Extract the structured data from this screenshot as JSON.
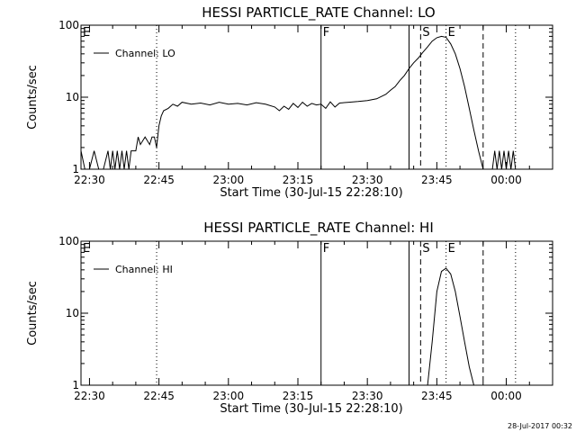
{
  "footer": {
    "timestamp": "28-Jul-2017 00:32"
  },
  "chart_data": [
    {
      "type": "line",
      "title": "HESSI PARTICLE_RATE Channel: LO",
      "xlabel": "Start Time (30-Jul-15 22:28:10)",
      "ylabel": "Counts/sec",
      "yscale": "log",
      "xlim": [
        "22:28:10",
        "00:10:00"
      ],
      "ylim": [
        1,
        100
      ],
      "xticks": [
        "22:30",
        "22:45",
        "23:00",
        "23:15",
        "23:30",
        "23:45",
        "00:00"
      ],
      "yticks": [
        "1",
        "10",
        "100"
      ],
      "legend": {
        "placement": "top-left",
        "entries": [
          "Channel: LO"
        ]
      },
      "markers": [
        {
          "label": "E",
          "time": "22:28:10",
          "style": "solid"
        },
        {
          "label": "",
          "time": "22:44:30",
          "style": "dotted"
        },
        {
          "label": "F",
          "time": "23:20:00",
          "style": "solid"
        },
        {
          "label": "",
          "time": "23:39:00",
          "style": "solid"
        },
        {
          "label": "S",
          "time": "23:41:30",
          "style": "dashed"
        },
        {
          "label": "E",
          "time": "23:47:00",
          "style": "dotted"
        },
        {
          "label": "",
          "time": "23:55:00",
          "style": "dashed"
        },
        {
          "label": "",
          "time": "00:02:00",
          "style": "dotted"
        }
      ],
      "series": [
        {
          "name": "Channel: LO",
          "points": [
            [
              "22:28:10",
              1.8
            ],
            [
              "22:29:00",
              1.0
            ],
            [
              "22:30:00",
              1.0
            ],
            [
              "22:31:00",
              1.8
            ],
            [
              "22:32:00",
              1.0
            ],
            [
              "22:33:00",
              1.0
            ],
            [
              "22:34:00",
              1.8
            ],
            [
              "22:34:30",
              1.0
            ],
            [
              "22:35:00",
              1.8
            ],
            [
              "22:35:30",
              1.0
            ],
            [
              "22:36:00",
              1.8
            ],
            [
              "22:36:30",
              1.0
            ],
            [
              "22:37:00",
              1.8
            ],
            [
              "22:37:30",
              1.0
            ],
            [
              "22:38:00",
              1.8
            ],
            [
              "22:38:30",
              1.0
            ],
            [
              "22:39:00",
              1.8
            ],
            [
              "22:40:00",
              1.8
            ],
            [
              "22:40:30",
              2.8
            ],
            [
              "22:41:00",
              2.2
            ],
            [
              "22:42:00",
              2.8
            ],
            [
              "22:43:00",
              2.2
            ],
            [
              "22:43:30",
              2.8
            ],
            [
              "22:44:00",
              2.8
            ],
            [
              "22:44:30",
              2.0
            ],
            [
              "22:45:00",
              4.0
            ],
            [
              "22:45:30",
              5.5
            ],
            [
              "22:46:00",
              6.5
            ],
            [
              "22:47:00",
              7.0
            ],
            [
              "22:48:00",
              8.0
            ],
            [
              "22:49:00",
              7.5
            ],
            [
              "22:50:00",
              8.5
            ],
            [
              "22:52:00",
              8.0
            ],
            [
              "22:54:00",
              8.3
            ],
            [
              "22:56:00",
              7.8
            ],
            [
              "22:58:00",
              8.5
            ],
            [
              "23:00:00",
              8.0
            ],
            [
              "23:02:00",
              8.2
            ],
            [
              "23:04:00",
              7.8
            ],
            [
              "23:06:00",
              8.4
            ],
            [
              "23:08:00",
              8.0
            ],
            [
              "23:10:00",
              7.3
            ],
            [
              "23:11:00",
              6.5
            ],
            [
              "23:12:00",
              7.5
            ],
            [
              "23:13:00",
              6.8
            ],
            [
              "23:14:00",
              8.2
            ],
            [
              "23:15:00",
              7.2
            ],
            [
              "23:16:00",
              8.5
            ],
            [
              "23:17:00",
              7.5
            ],
            [
              "23:18:00",
              8.2
            ],
            [
              "23:19:00",
              7.8
            ],
            [
              "23:20:00",
              8.0
            ],
            [
              "23:21:00",
              7.0
            ],
            [
              "23:22:00",
              8.6
            ],
            [
              "23:23:00",
              7.3
            ],
            [
              "23:24:00",
              8.3
            ],
            [
              "23:26:00",
              8.5
            ],
            [
              "23:28:00",
              8.7
            ],
            [
              "23:30:00",
              9.0
            ],
            [
              "23:32:00",
              9.5
            ],
            [
              "23:34:00",
              11.0
            ],
            [
              "23:35:00",
              12.5
            ],
            [
              "23:36:00",
              14.0
            ],
            [
              "23:37:00",
              17.0
            ],
            [
              "23:38:00",
              20.0
            ],
            [
              "23:39:00",
              25.0
            ],
            [
              "23:40:00",
              30.0
            ],
            [
              "23:41:00",
              35.0
            ],
            [
              "23:42:00",
              42.0
            ],
            [
              "23:43:00",
              50.0
            ],
            [
              "23:44:00",
              60.0
            ],
            [
              "23:45:00",
              67.0
            ],
            [
              "23:46:00",
              70.0
            ],
            [
              "23:47:00",
              68.0
            ],
            [
              "23:48:00",
              55.0
            ],
            [
              "23:49:00",
              40.0
            ],
            [
              "23:50:00",
              25.0
            ],
            [
              "23:51:00",
              14.0
            ],
            [
              "23:52:00",
              7.0
            ],
            [
              "23:53:00",
              3.5
            ],
            [
              "23:54:00",
              1.8
            ],
            [
              "23:55:00",
              1.0
            ]
          ]
        },
        {
          "name": "",
          "points": [
            [
              "23:57:00",
              1.0
            ],
            [
              "23:57:30",
              1.8
            ],
            [
              "23:58:00",
              1.0
            ],
            [
              "23:58:30",
              1.8
            ],
            [
              "23:59:00",
              1.0
            ],
            [
              "23:59:30",
              1.8
            ],
            [
              "00:00:00",
              1.0
            ],
            [
              "00:00:30",
              1.8
            ],
            [
              "00:01:00",
              1.0
            ],
            [
              "00:01:30",
              1.8
            ],
            [
              "00:02:00",
              1.0
            ]
          ]
        }
      ]
    },
    {
      "type": "line",
      "title": "HESSI PARTICLE_RATE Channel: HI",
      "xlabel": "Start Time (30-Jul-15 22:28:10)",
      "ylabel": "Counts/sec",
      "yscale": "log",
      "xlim": [
        "22:28:10",
        "00:10:00"
      ],
      "ylim": [
        1,
        100
      ],
      "xticks": [
        "22:30",
        "22:45",
        "23:00",
        "23:15",
        "23:30",
        "23:45",
        "00:00"
      ],
      "yticks": [
        "1",
        "10",
        "100"
      ],
      "legend": {
        "placement": "top-left",
        "entries": [
          "Channel: HI"
        ]
      },
      "markers": [
        {
          "label": "E",
          "time": "22:28:10",
          "style": "solid"
        },
        {
          "label": "",
          "time": "22:44:30",
          "style": "dotted"
        },
        {
          "label": "F",
          "time": "23:20:00",
          "style": "solid"
        },
        {
          "label": "",
          "time": "23:39:00",
          "style": "solid"
        },
        {
          "label": "S",
          "time": "23:41:30",
          "style": "dashed"
        },
        {
          "label": "E",
          "time": "23:47:00",
          "style": "dotted"
        },
        {
          "label": "",
          "time": "23:55:00",
          "style": "dashed"
        },
        {
          "label": "",
          "time": "00:02:00",
          "style": "dotted"
        }
      ],
      "series": [
        {
          "name": "Channel: HI",
          "points": [
            [
              "23:43:00",
              1.0
            ],
            [
              "23:44:00",
              4.0
            ],
            [
              "23:45:00",
              20.0
            ],
            [
              "23:46:00",
              38.0
            ],
            [
              "23:47:00",
              42.0
            ],
            [
              "23:48:00",
              35.0
            ],
            [
              "23:49:00",
              20.0
            ],
            [
              "23:50:00",
              9.0
            ],
            [
              "23:51:00",
              4.0
            ],
            [
              "23:52:00",
              1.8
            ],
            [
              "23:53:00",
              1.0
            ]
          ]
        }
      ]
    }
  ]
}
